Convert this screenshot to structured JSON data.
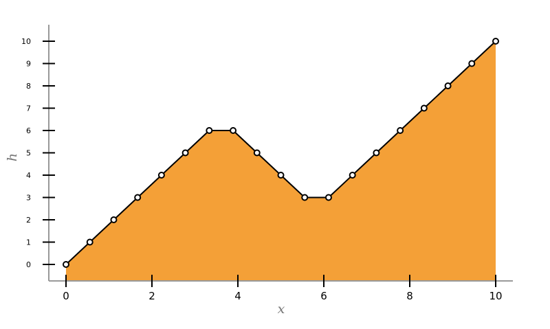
{
  "chart_data": {
    "type": "area",
    "xlabel": "x",
    "ylabel": "h",
    "xlim": [
      -0.4,
      10.4
    ],
    "ylim": [
      -0.75,
      10.8
    ],
    "x_ticks": [
      0,
      2,
      4,
      6,
      8,
      10
    ],
    "y_ticks": [
      0,
      1,
      2,
      3,
      4,
      5,
      6,
      7,
      8,
      9,
      10
    ],
    "grid": false,
    "legend": "none",
    "series": [
      {
        "x": [
          0,
          0.5556,
          1.1111,
          1.6667,
          2.2222,
          2.7778,
          3.3333,
          3.8889,
          4.4444,
          5.0,
          5.5556,
          6.1111,
          6.6667,
          7.2222,
          7.7778,
          8.3333,
          8.8889,
          9.4444,
          10.0
        ],
        "y": [
          0,
          1,
          2,
          3,
          4,
          5,
          6,
          6,
          5,
          4,
          3,
          3,
          4,
          5,
          6,
          7,
          8,
          9,
          10
        ],
        "fill_color": "#f4a037",
        "line_color": "#000000",
        "marker_color": "#ffffff"
      }
    ],
    "colors": {
      "axis": "#999999",
      "tick": "#000000",
      "title": "#777777"
    }
  }
}
